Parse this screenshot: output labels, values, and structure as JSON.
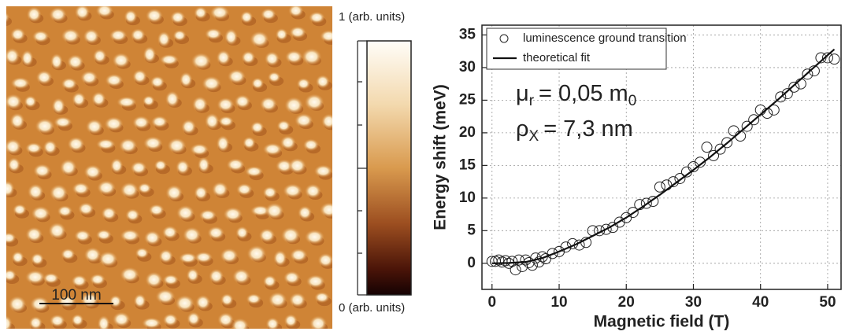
{
  "afm_image": {
    "scale_bar_label": "100 nm",
    "colorbar": {
      "max_label": "1 (arb. units)",
      "min_label": "0 (arb. units)"
    }
  },
  "chart_data": {
    "type": "scatter",
    "x_label": "Magnetic field (T)",
    "y_label": "Energy shift (meV)",
    "xlim": [
      -1.5,
      52
    ],
    "xticks": [
      0,
      10,
      20,
      30,
      40,
      50
    ],
    "ylim": [
      -4,
      36.5
    ],
    "yticks": [
      0,
      5,
      10,
      15,
      20,
      25,
      30,
      35
    ],
    "grid": true,
    "legend": "top-left",
    "series": [
      {
        "name": "luminescence ground transition",
        "style": "markers",
        "color": "#222222",
        "x": [
          0,
          0.5,
          1,
          1.5,
          2,
          2.5,
          3,
          3.5,
          4,
          4.5,
          5,
          5.5,
          6,
          6.5,
          7,
          7.5,
          8,
          9,
          10,
          11,
          12,
          13,
          14,
          15,
          16,
          17,
          18,
          19,
          20,
          21,
          22,
          23,
          24,
          25,
          26,
          27,
          28,
          29,
          30,
          31,
          32,
          33,
          34,
          35,
          36,
          37,
          38,
          39,
          40,
          41,
          42,
          43,
          44,
          45,
          46,
          47,
          48,
          49,
          50,
          51
        ],
        "values": [
          0.3,
          0.3,
          0.5,
          0.2,
          0.4,
          0,
          0.3,
          -1,
          0.5,
          -0.5,
          0.5,
          0.1,
          -0.3,
          0.8,
          0.2,
          1,
          0.7,
          1.5,
          1.8,
          2.5,
          3,
          2.8,
          3.2,
          5,
          5,
          5.2,
          5.5,
          6.3,
          7,
          7.8,
          9,
          9.2,
          9.5,
          11.7,
          12,
          12.5,
          13,
          14,
          14.8,
          15.5,
          17.8,
          16.5,
          17.5,
          18.5,
          20.3,
          19.5,
          21,
          22,
          23.5,
          23,
          23.5,
          25.5,
          26,
          27,
          27.5,
          29,
          29.5,
          31.5,
          31.5,
          31.3
        ]
      },
      {
        "name": "theoretical fit",
        "style": "line",
        "color": "#111111",
        "x": [
          0,
          2.5,
          5,
          7.5,
          10,
          12.5,
          15,
          17.5,
          20,
          22.5,
          25,
          27.5,
          30,
          32.5,
          35,
          37.5,
          40,
          42.5,
          45,
          47.5,
          50,
          51
        ],
        "values": [
          0,
          0.05,
          0.2,
          0.8,
          1.8,
          2.9,
          4.2,
          5.5,
          7,
          8.7,
          10.5,
          12.4,
          14.3,
          16.3,
          18.4,
          20.6,
          22.8,
          25,
          27.3,
          29.6,
          31.9,
          32.8
        ]
      }
    ],
    "annotations": [
      {
        "symbol": "μ",
        "symbol_sub": "r",
        "text": "= 0,05 m",
        "text_sub": "0"
      },
      {
        "symbol": "ρ",
        "symbol_sub": "X",
        "text": "= 7,3 nm"
      }
    ]
  }
}
